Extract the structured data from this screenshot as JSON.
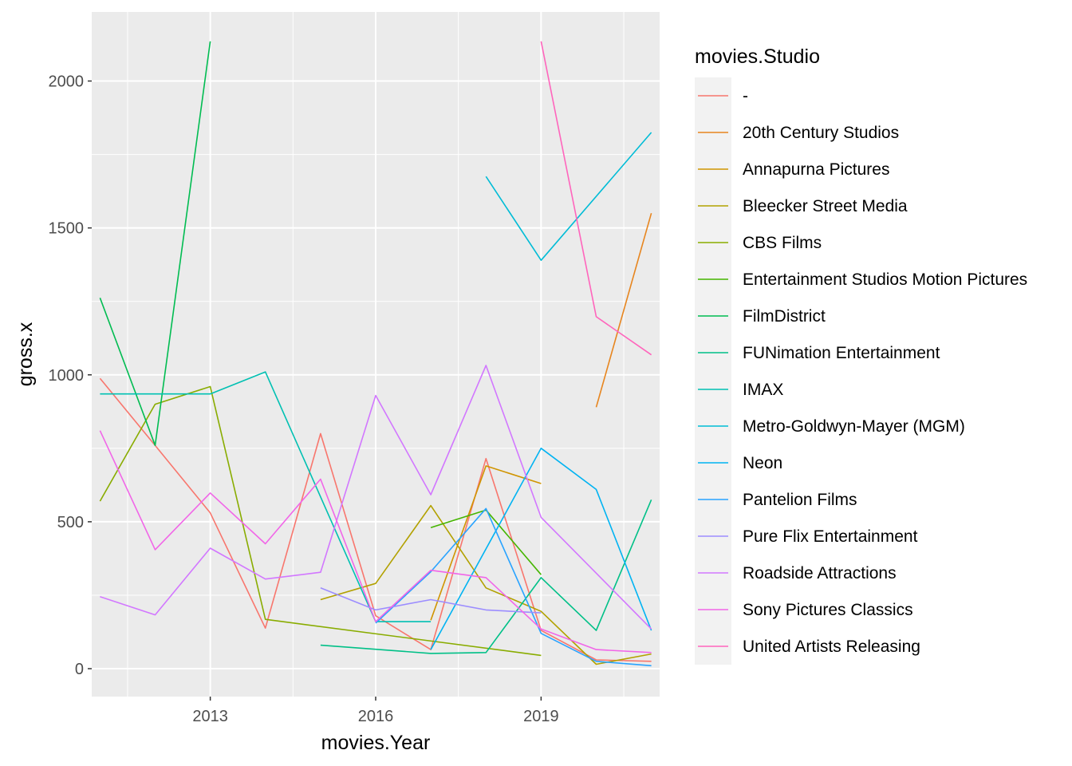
{
  "chart_data": {
    "type": "line",
    "xlabel": "movies.Year",
    "ylabel": "gross.x",
    "xlim": [
      2010.85,
      2021.15
    ],
    "ylim": [
      -95,
      2235
    ],
    "x_ticks": [
      2013,
      2016,
      2019
    ],
    "x_tick_labels": [
      "2013",
      "2016",
      "2019"
    ],
    "y_ticks": [
      0,
      500,
      1000,
      1500,
      2000
    ],
    "y_tick_labels": [
      "0",
      "500",
      "1000",
      "1500",
      "2000"
    ],
    "grid": true,
    "legend_position": "right",
    "legend_title": "movies.Studio",
    "series": [
      {
        "name": "-",
        "color": "#F8766D",
        "x": [
          2011,
          2012,
          2013,
          2014,
          2015,
          2016,
          2017,
          2018,
          2019,
          2020,
          2021
        ],
        "y": [
          988,
          760,
          530,
          138,
          800,
          180,
          65,
          715,
          130,
          30,
          25
        ]
      },
      {
        "name": "20th Century Studios",
        "color": "#E7851E",
        "x": [
          2020,
          2021
        ],
        "y": [
          890,
          1550
        ]
      },
      {
        "name": "Annapurna Pictures",
        "color": "#D09400",
        "x": [
          2017,
          2018,
          2019
        ],
        "y": [
          165,
          690,
          630
        ]
      },
      {
        "name": "Bleecker Street Media",
        "color": "#B2A100",
        "x": [
          2015,
          2016,
          2017,
          2018,
          2019,
          2020,
          2021
        ],
        "y": [
          235,
          290,
          555,
          275,
          195,
          15,
          50
        ]
      },
      {
        "name": "CBS Films",
        "color": "#89AC00",
        "x": [
          2011,
          2012,
          2013,
          2014,
          2019
        ],
        "y": [
          570,
          900,
          960,
          168,
          45
        ]
      },
      {
        "name": "Entertainment Studios Motion Pictures",
        "color": "#45B500",
        "x": [
          2017,
          2018,
          2019
        ],
        "y": [
          480,
          540,
          320
        ]
      },
      {
        "name": "FilmDistrict",
        "color": "#00BC51",
        "x": [
          2011,
          2012,
          2013
        ],
        "y": [
          1262,
          760,
          2135
        ]
      },
      {
        "name": "FUNimation Entertainment",
        "color": "#00C087",
        "x": [
          2015,
          2017,
          2018,
          2019,
          2020,
          2021
        ],
        "y": [
          80,
          52,
          55,
          310,
          130,
          575
        ]
      },
      {
        "name": "IMAX",
        "color": "#00C0B2",
        "x": [
          2011,
          2013,
          2014,
          2016,
          2017
        ],
        "y": [
          935,
          935,
          1010,
          160,
          160
        ]
      },
      {
        "name": "Metro-Goldwyn-Mayer (MGM)",
        "color": "#00BCD6",
        "x": [
          2018,
          2019,
          2021
        ],
        "y": [
          1675,
          1390,
          1825
        ]
      },
      {
        "name": "Neon",
        "color": "#00B3F2",
        "x": [
          2017,
          2019,
          2020,
          2021
        ],
        "y": [
          65,
          750,
          610,
          130
        ]
      },
      {
        "name": "Pantelion Films",
        "color": "#29A3FF",
        "x": [
          2016,
          2017,
          2018,
          2019,
          2020,
          2021
        ],
        "y": [
          155,
          330,
          545,
          120,
          25,
          10
        ]
      },
      {
        "name": "Pure Flix Entertainment",
        "color": "#9C8DFF",
        "x": [
          2015,
          2016,
          2017,
          2018,
          2019
        ],
        "y": [
          275,
          200,
          235,
          200,
          190
        ]
      },
      {
        "name": "Roadside Attractions",
        "color": "#D277FF",
        "x": [
          2011,
          2012,
          2013,
          2014,
          2015,
          2016,
          2017,
          2018,
          2019,
          2021
        ],
        "y": [
          245,
          183,
          410,
          305,
          328,
          930,
          592,
          1032,
          515,
          135
        ]
      },
      {
        "name": "Sony Pictures Classics",
        "color": "#F166E8",
        "x": [
          2011,
          2012,
          2013,
          2014,
          2015,
          2016,
          2017,
          2018,
          2019,
          2020,
          2021
        ],
        "y": [
          810,
          405,
          598,
          425,
          645,
          160,
          335,
          310,
          135,
          65,
          55
        ]
      },
      {
        "name": "United Artists Releasing",
        "color": "#FF65BC",
        "x": [
          2019,
          2020,
          2021
        ],
        "y": [
          2135,
          1198,
          1068
        ]
      }
    ]
  }
}
